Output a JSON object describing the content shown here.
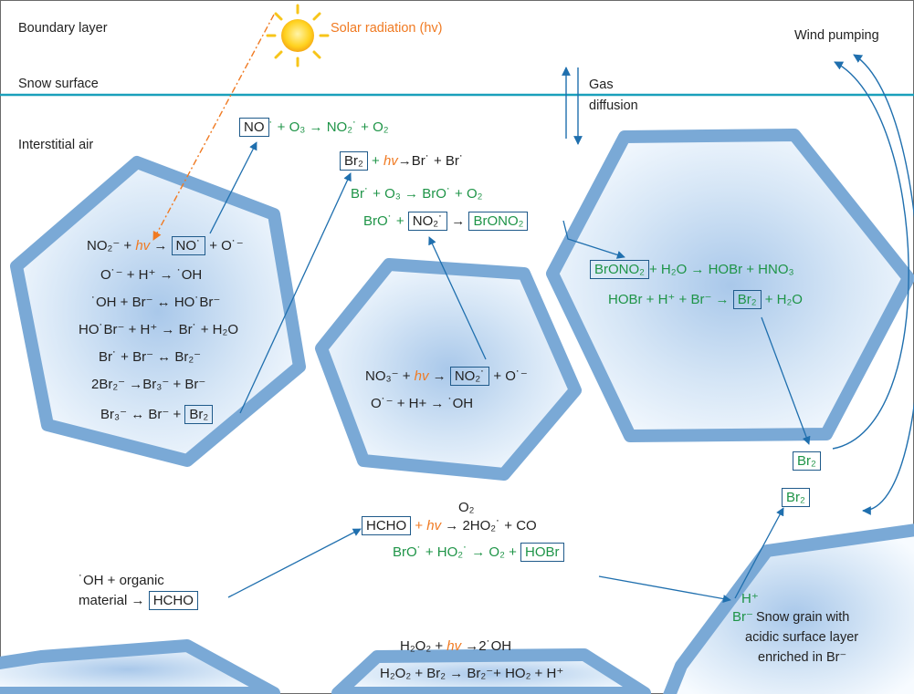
{
  "labels": {
    "boundary_layer": "Boundary layer",
    "snow_surface": "Snow surface",
    "interstitial_air": "Interstitial air",
    "solar_radiation": "Solar radiation (hv)",
    "wind_pumping": "Wind pumping",
    "gas_diffusion_1": "Gas",
    "gas_diffusion_2": "diffusion",
    "snow_grain_1": "Snow grain with",
    "snow_grain_2": "acidic surface layer",
    "snow_grain_3": "enriched in Br⁻"
  },
  "reactions": {
    "r_no_o3_a": "NO",
    "r_no_o3_b": "˙ + O₃ → NO₂˙ + O₂",
    "r_br2_hv_a": "Br₂",
    "r_br2_hv_b": "+",
    "r_br2_hv_c": "hv",
    "r_br2_hv_d": "→Br˙ + Br˙",
    "r_br_o3": "Br˙ + O₃ → BrO˙ + O₂",
    "r_bro_no2_a": "BrO˙ +",
    "r_bro_no2_b": "NO₂˙",
    "r_bro_no2_c": "→",
    "r_bro_no2_d": "BrONO₂",
    "g1_a": "NO₂⁻ +",
    "g1_b": "hv",
    "g1_c": "→",
    "g1_d": "NO˙",
    "g1_e": "+ O˙⁻",
    "g1_2": "O˙⁻ + H⁺ → ˙OH",
    "g1_3": "˙OH + Br⁻ ↔ HO˙Br⁻",
    "g1_4": "HO˙Br⁻ + H⁺ → Br˙ + H₂O",
    "g1_5": "Br˙ + Br⁻ ↔ Br₂⁻",
    "g1_6": "2Br₂⁻ →Br₃⁻ + Br⁻",
    "g1_7a": "Br₃⁻ ↔ Br⁻ +",
    "g1_7b": "Br₂",
    "g2_a": "NO₃⁻ +",
    "g2_b": "hv",
    "g2_c": "→",
    "g2_d": "NO₂˙",
    "g2_e": "+ O˙⁻",
    "g2_2": "O˙⁻ + H+ → ˙OH",
    "g3_1a": "BrONO₂",
    "g3_1b": "+ H₂O → HOBr + HNO₃",
    "g3_2a": "HOBr + H⁺ + Br⁻ →",
    "g3_2b": "Br₂",
    "g3_2c": "+ H₂O",
    "br2_top": "Br₂",
    "br2_bottom": "Br₂",
    "o2_label": "O₂",
    "hcho_a": "HCHO",
    "hcho_b": "+",
    "hcho_c": "hv",
    "hcho_d": "→ 2HO₂˙ + CO",
    "bro_ho2_a": "BrO˙ + HO₂˙ → O₂ +",
    "bro_ho2_b": "HOBr",
    "org_1": "˙OH + organic",
    "org_2a": "material →",
    "org_2b": "HCHO",
    "hplus": "H⁺",
    "brminus": "Br⁻",
    "h2o2_a": "H₂O₂ +",
    "h2o2_b": "hv",
    "h2o2_c": "→2˙OH",
    "h2o2_br2": "H₂O₂ + Br₂ → Br₂⁻+ HO₂ + H⁺"
  }
}
